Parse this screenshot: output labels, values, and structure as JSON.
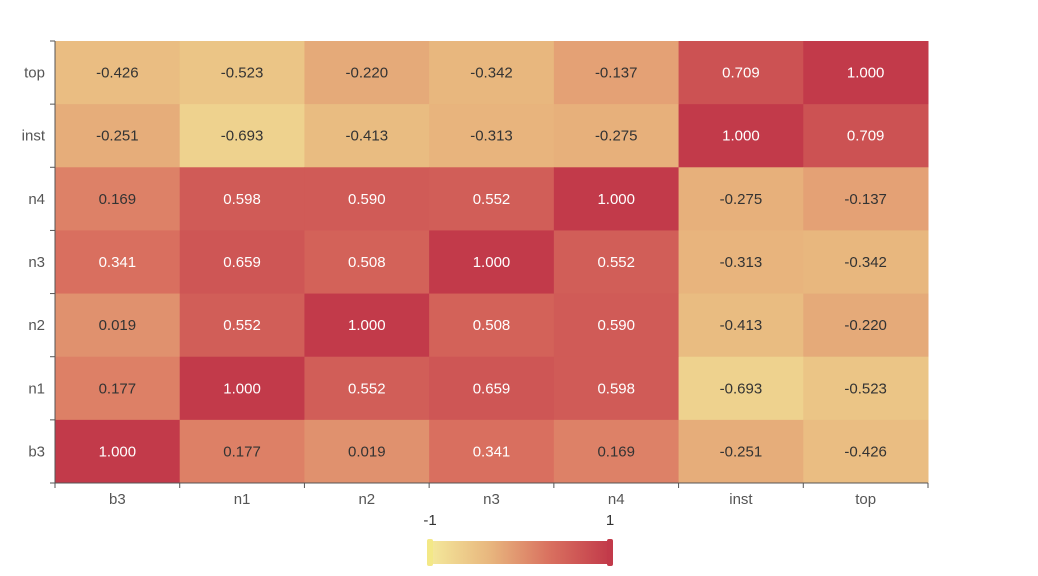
{
  "chart_data": {
    "type": "heatmap",
    "x_categories": [
      "b3",
      "n1",
      "n2",
      "n3",
      "n4",
      "inst",
      "top"
    ],
    "y_categories": [
      "b3",
      "n1",
      "n2",
      "n3",
      "n4",
      "inst",
      "top"
    ],
    "rows": [
      {
        "y": "top",
        "values": [
          -0.426,
          -0.523,
          -0.22,
          -0.342,
          -0.137,
          0.709,
          1.0
        ]
      },
      {
        "y": "inst",
        "values": [
          -0.251,
          -0.693,
          -0.413,
          -0.313,
          -0.275,
          1.0,
          0.709
        ]
      },
      {
        "y": "n4",
        "values": [
          0.169,
          0.598,
          0.59,
          0.552,
          1.0,
          -0.275,
          -0.137
        ]
      },
      {
        "y": "n3",
        "values": [
          0.341,
          0.659,
          0.508,
          1.0,
          0.552,
          -0.313,
          -0.342
        ]
      },
      {
        "y": "n2",
        "values": [
          0.019,
          0.552,
          1.0,
          0.508,
          0.59,
          -0.413,
          -0.22
        ]
      },
      {
        "y": "n1",
        "values": [
          0.177,
          1.0,
          0.552,
          0.659,
          0.598,
          -0.693,
          -0.523
        ]
      },
      {
        "y": "b3",
        "values": [
          1.0,
          0.177,
          0.019,
          0.341,
          0.169,
          -0.251,
          -0.426
        ]
      }
    ],
    "value_range": [
      -1,
      1
    ],
    "visual_map": {
      "min_label": "-1",
      "max_label": "1",
      "colors": [
        "#f4e99b",
        "#e8b67e",
        "#d9705f",
        "#c23a4a"
      ],
      "handle_min_color": "#f3e887",
      "handle_max_color": "#c23a4a"
    },
    "label_dark_color": "#333333",
    "label_light_color": "#ffffff"
  }
}
